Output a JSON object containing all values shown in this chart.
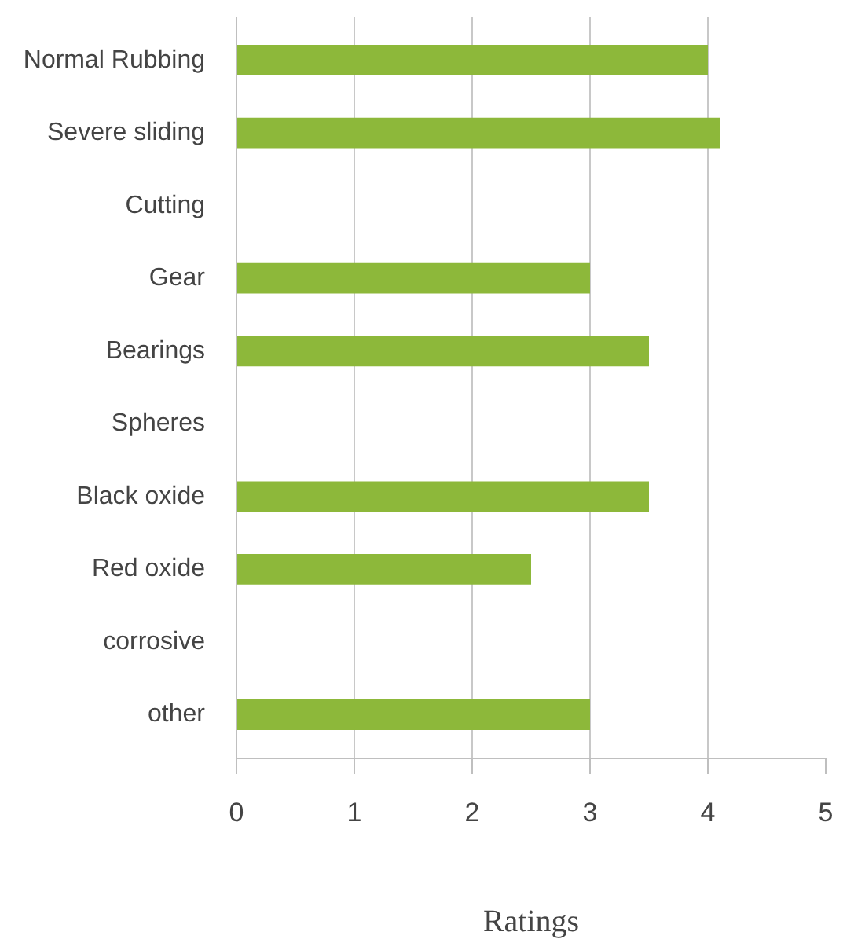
{
  "chart_data": {
    "type": "bar",
    "orientation": "horizontal",
    "xlabel": "Ratings",
    "categories": [
      "Normal Rubbing",
      "Severe sliding",
      "Cutting",
      "Gear",
      "Bearings",
      "Spheres",
      "Black oxide",
      "Red oxide",
      "corrosive",
      "other"
    ],
    "values": [
      4,
      4.1,
      0,
      3,
      3.5,
      0,
      3.5,
      2.5,
      0,
      3
    ],
    "color": "#8db83a",
    "xlim": [
      0,
      5
    ],
    "xticks": [
      0,
      1,
      2,
      3,
      4,
      5
    ],
    "grid": "x"
  }
}
